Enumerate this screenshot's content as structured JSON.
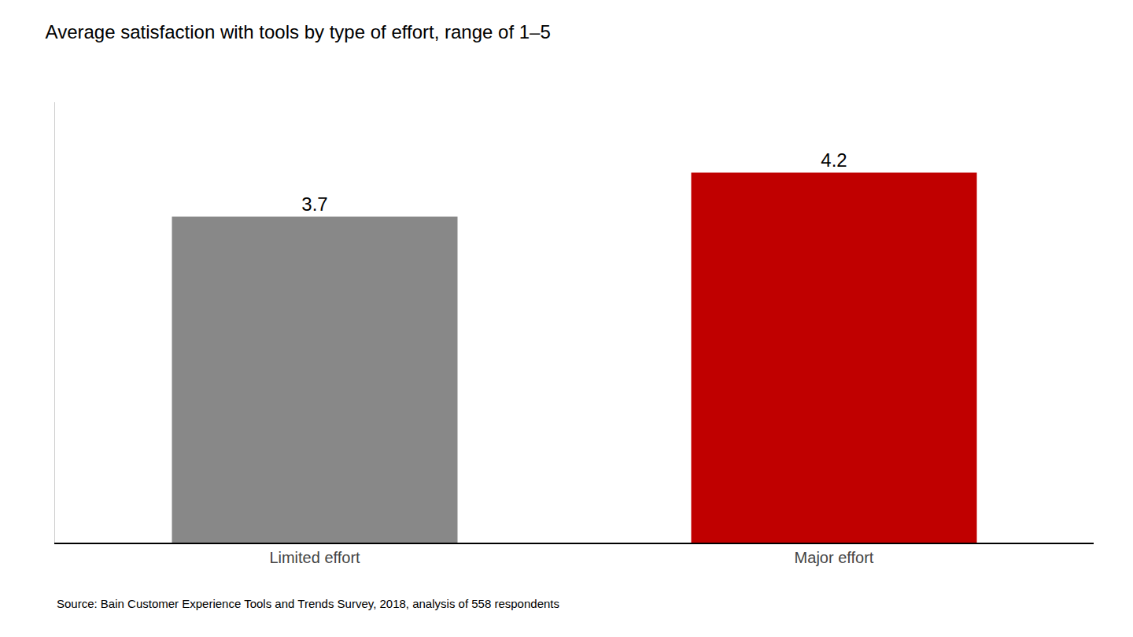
{
  "chart_data": {
    "type": "bar",
    "title": "Average satisfaction with tools by type of effort, range of 1–5",
    "categories": [
      "Limited effort",
      "Major effort"
    ],
    "values": [
      3.7,
      4.2
    ],
    "colors": [
      "#888888",
      "#c00000"
    ],
    "ylim": [
      0,
      5
    ],
    "data_labels": true,
    "tick_labels": "x",
    "grid": false,
    "annotations": [
      "Source: Bain Customer Experience Tools and Trends Survey, 2018, analysis of 558 respondents"
    ]
  }
}
